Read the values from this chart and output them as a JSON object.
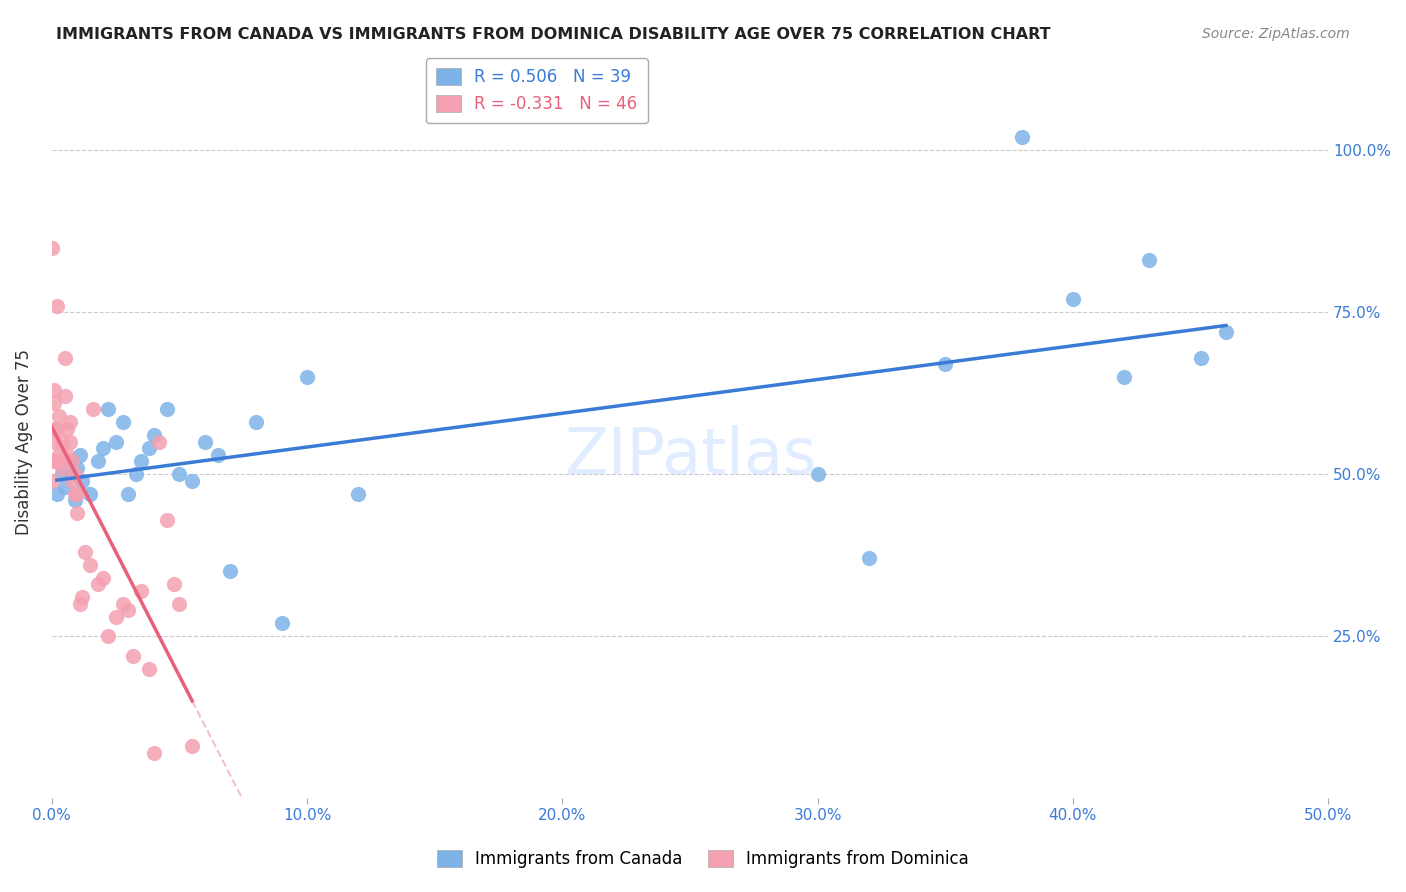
{
  "title": "IMMIGRANTS FROM CANADA VS IMMIGRANTS FROM DOMINICA DISABILITY AGE OVER 75 CORRELATION CHART",
  "source": "Source: ZipAtlas.com",
  "ylabel": "Disability Age Over 75",
  "xlim": [
    0.0,
    0.5
  ],
  "ylim": [
    0.0,
    1.1
  ],
  "xticks": [
    0.0,
    0.1,
    0.2,
    0.3,
    0.4,
    0.5
  ],
  "xtick_labels": [
    "0.0%",
    "10.0%",
    "20.0%",
    "30.0%",
    "40.0%",
    "50.0%"
  ],
  "yticks": [
    0.0,
    0.25,
    0.5,
    0.75,
    1.0
  ],
  "ytick_labels_right": [
    "",
    "25.0%",
    "50.0%",
    "75.0%",
    "100.0%"
  ],
  "canada_R": 0.506,
  "canada_N": 39,
  "dominica_R": -0.331,
  "dominica_N": 46,
  "canada_color": "#7EB3E8",
  "dominica_color": "#F4A0B0",
  "canada_line_color": "#3A7BD5",
  "dominica_line_color": "#E8607A",
  "watermark": "ZIPatlas",
  "canada_x": [
    0.002,
    0.004,
    0.005,
    0.007,
    0.008,
    0.009,
    0.01,
    0.011,
    0.012,
    0.015,
    0.018,
    0.02,
    0.022,
    0.025,
    0.028,
    0.03,
    0.033,
    0.035,
    0.038,
    0.04,
    0.045,
    0.05,
    0.055,
    0.06,
    0.065,
    0.07,
    0.08,
    0.09,
    0.1,
    0.12,
    0.3,
    0.32,
    0.35,
    0.38,
    0.4,
    0.42,
    0.43,
    0.45,
    0.46
  ],
  "canada_y": [
    0.47,
    0.5,
    0.48,
    0.52,
    0.5,
    0.46,
    0.51,
    0.53,
    0.49,
    0.47,
    0.52,
    0.54,
    0.6,
    0.55,
    0.58,
    0.47,
    0.5,
    0.52,
    0.54,
    0.56,
    0.6,
    0.5,
    0.49,
    0.55,
    0.53,
    0.35,
    0.58,
    0.27,
    0.65,
    0.47,
    0.5,
    0.37,
    0.67,
    1.02,
    0.77,
    0.65,
    0.83,
    0.68,
    0.72
  ],
  "dominica_x": [
    0.0,
    0.0,
    0.0,
    0.001,
    0.001,
    0.001,
    0.001,
    0.002,
    0.002,
    0.002,
    0.003,
    0.003,
    0.004,
    0.004,
    0.005,
    0.005,
    0.006,
    0.006,
    0.007,
    0.007,
    0.008,
    0.008,
    0.009,
    0.009,
    0.01,
    0.01,
    0.011,
    0.012,
    0.013,
    0.015,
    0.016,
    0.018,
    0.02,
    0.022,
    0.025,
    0.028,
    0.03,
    0.032,
    0.035,
    0.038,
    0.04,
    0.042,
    0.045,
    0.048,
    0.05,
    0.055
  ],
  "dominica_y": [
    0.52,
    0.49,
    0.85,
    0.57,
    0.55,
    0.63,
    0.61,
    0.52,
    0.57,
    0.76,
    0.53,
    0.59,
    0.51,
    0.55,
    0.62,
    0.68,
    0.53,
    0.57,
    0.58,
    0.55,
    0.49,
    0.52,
    0.47,
    0.5,
    0.44,
    0.47,
    0.3,
    0.31,
    0.38,
    0.36,
    0.6,
    0.33,
    0.34,
    0.25,
    0.28,
    0.3,
    0.29,
    0.22,
    0.32,
    0.2,
    0.07,
    0.55,
    0.43,
    0.33,
    0.3,
    0.08
  ]
}
